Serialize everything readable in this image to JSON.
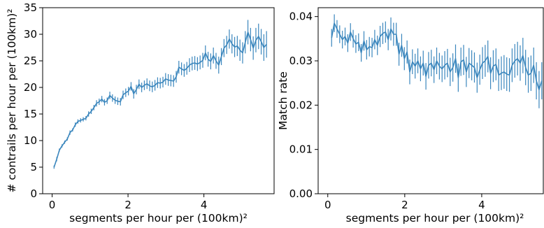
{
  "chart_data": [
    {
      "type": "line",
      "xlabel": "segments per hour per (100km)²",
      "ylabel": "# contrails per hour per (100km)²",
      "xlim": [
        -0.25,
        5.85
      ],
      "ylim": [
        0,
        35
      ],
      "xticks": [
        0,
        2,
        4
      ],
      "xtick_labels": [
        "0",
        "2",
        "4"
      ],
      "yticks": [
        0,
        5,
        10,
        15,
        20,
        25,
        30,
        35
      ],
      "ytick_labels": [
        "0",
        "5",
        "10",
        "15",
        "20",
        "25",
        "30",
        "35"
      ],
      "grid": false,
      "series": [
        {
          "color": "#3a86bd",
          "error_bars": true,
          "x": [
            0.05,
            0.12,
            0.19,
            0.26,
            0.33,
            0.4,
            0.47,
            0.54,
            0.61,
            0.68,
            0.75,
            0.82,
            0.89,
            0.96,
            1.03,
            1.1,
            1.17,
            1.24,
            1.31,
            1.38,
            1.45,
            1.52,
            1.59,
            1.66,
            1.73,
            1.8,
            1.87,
            1.94,
            2.01,
            2.08,
            2.15,
            2.22,
            2.29,
            2.36,
            2.43,
            2.5,
            2.57,
            2.64,
            2.71,
            2.78,
            2.85,
            2.92,
            2.99,
            3.06,
            3.13,
            3.2,
            3.27,
            3.34,
            3.41,
            3.48,
            3.55,
            3.62,
            3.69,
            3.76,
            3.83,
            3.9,
            3.97,
            4.04,
            4.11,
            4.18,
            4.25,
            4.32,
            4.39,
            4.46,
            4.53,
            4.6,
            4.67,
            4.74,
            4.81,
            4.88,
            4.95,
            5.02,
            5.09,
            5.16,
            5.23,
            5.3,
            5.37,
            5.44,
            5.51,
            5.58,
            5.65
          ],
          "y": [
            5.0,
            6.5,
            8.2,
            9.0,
            9.7,
            10.3,
            11.5,
            12.0,
            13.0,
            13.6,
            13.8,
            14.0,
            14.2,
            15.0,
            15.5,
            16.2,
            17.0,
            17.3,
            17.8,
            17.2,
            17.5,
            18.5,
            18.0,
            17.6,
            17.4,
            17.3,
            18.6,
            19.0,
            19.3,
            20.2,
            18.8,
            19.6,
            20.6,
            20.0,
            20.4,
            20.7,
            20.3,
            20.1,
            20.4,
            20.9,
            20.8,
            21.0,
            21.6,
            21.4,
            21.3,
            21.2,
            22.0,
            23.8,
            23.5,
            23.2,
            23.6,
            24.2,
            24.5,
            24.6,
            24.4,
            24.7,
            25.1,
            26.5,
            25.3,
            24.9,
            26.0,
            25.0,
            24.2,
            25.8,
            27.4,
            28.0,
            29.1,
            28.2,
            27.6,
            27.8,
            27.0,
            26.5,
            28.5,
            30.4,
            29.0,
            27.4,
            28.9,
            29.6,
            28.6,
            27.5,
            28.1
          ],
          "err": [
            0.3,
            0.4,
            0.3,
            0.3,
            0.3,
            0.3,
            0.4,
            0.3,
            0.4,
            0.4,
            0.4,
            0.4,
            0.4,
            0.5,
            0.5,
            0.5,
            0.6,
            0.6,
            0.6,
            0.6,
            0.6,
            0.7,
            0.7,
            0.7,
            0.7,
            0.7,
            0.8,
            0.8,
            0.8,
            0.8,
            0.9,
            0.9,
            0.9,
            0.9,
            0.9,
            1.0,
            1.0,
            1.0,
            1.0,
            1.0,
            1.0,
            1.0,
            1.1,
            1.1,
            1.1,
            1.1,
            1.1,
            1.2,
            1.2,
            1.2,
            1.2,
            1.3,
            1.3,
            1.3,
            1.3,
            1.3,
            1.4,
            1.4,
            1.4,
            1.5,
            1.5,
            1.5,
            1.6,
            1.6,
            1.7,
            1.7,
            1.8,
            1.8,
            1.9,
            1.9,
            2.0,
            2.0,
            2.1,
            2.3,
            2.2,
            2.2,
            2.3,
            2.4,
            2.4,
            2.5,
            2.5
          ]
        }
      ]
    },
    {
      "type": "line",
      "xlabel": "segments per hour per (100km)²",
      "ylabel": "Match rate",
      "xlim": [
        -0.25,
        5.6
      ],
      "ylim": [
        0,
        0.042
      ],
      "xticks": [
        0,
        2,
        4
      ],
      "xtick_labels": [
        "0",
        "2",
        "4"
      ],
      "yticks": [
        0,
        0.01,
        0.02,
        0.03,
        0.04
      ],
      "ytick_labels": [
        "0.00",
        "0.01",
        "0.02",
        "0.03",
        "0.04"
      ],
      "grid": false,
      "series": [
        {
          "color": "#3a86bd",
          "error_bars": true,
          "x": [
            0.1,
            0.17,
            0.24,
            0.31,
            0.38,
            0.45,
            0.52,
            0.59,
            0.66,
            0.73,
            0.8,
            0.87,
            0.94,
            1.01,
            1.08,
            1.15,
            1.22,
            1.29,
            1.36,
            1.43,
            1.5,
            1.57,
            1.64,
            1.71,
            1.78,
            1.85,
            1.92,
            1.99,
            2.06,
            2.13,
            2.2,
            2.27,
            2.34,
            2.41,
            2.48,
            2.55,
            2.62,
            2.69,
            2.76,
            2.83,
            2.9,
            2.97,
            3.04,
            3.11,
            3.18,
            3.25,
            3.32,
            3.39,
            3.46,
            3.53,
            3.6,
            3.67,
            3.74,
            3.81,
            3.88,
            3.95,
            4.02,
            4.09,
            4.16,
            4.23,
            4.3,
            4.37,
            4.44,
            4.51,
            4.58,
            4.65,
            4.72,
            4.79,
            4.86,
            4.93,
            5.0,
            5.07,
            5.14,
            5.21,
            5.28,
            5.35,
            5.42,
            5.49,
            5.56
          ],
          "y": [
            0.0352,
            0.0385,
            0.0372,
            0.036,
            0.0348,
            0.0355,
            0.034,
            0.0365,
            0.035,
            0.0338,
            0.0342,
            0.0318,
            0.0345,
            0.0325,
            0.0332,
            0.033,
            0.0348,
            0.0335,
            0.0355,
            0.0362,
            0.0365,
            0.0348,
            0.0372,
            0.036,
            0.036,
            0.0315,
            0.0335,
            0.0305,
            0.032,
            0.0275,
            0.0298,
            0.0288,
            0.03,
            0.0282,
            0.0295,
            0.0265,
            0.029,
            0.0295,
            0.028,
            0.03,
            0.0288,
            0.0282,
            0.029,
            0.0295,
            0.0275,
            0.0285,
            0.0305,
            0.0262,
            0.0298,
            0.0302,
            0.0275,
            0.0295,
            0.029,
            0.0285,
            0.0262,
            0.028,
            0.0295,
            0.03,
            0.031,
            0.0272,
            0.0288,
            0.0292,
            0.0268,
            0.0272,
            0.0275,
            0.027,
            0.0268,
            0.029,
            0.03,
            0.0305,
            0.0295,
            0.0312,
            0.0285,
            0.0268,
            0.0272,
            0.029,
            0.0255,
            0.0235,
            0.0255
          ],
          "err": [
            0.002,
            0.002,
            0.002,
            0.002,
            0.002,
            0.002,
            0.002,
            0.002,
            0.002,
            0.002,
            0.002,
            0.002,
            0.0022,
            0.0022,
            0.0022,
            0.0022,
            0.0022,
            0.0022,
            0.0024,
            0.0024,
            0.0024,
            0.0024,
            0.0026,
            0.0026,
            0.0026,
            0.0026,
            0.0026,
            0.0026,
            0.0026,
            0.0028,
            0.0028,
            0.0028,
            0.0028,
            0.0028,
            0.0028,
            0.003,
            0.003,
            0.003,
            0.003,
            0.003,
            0.003,
            0.003,
            0.0032,
            0.0032,
            0.0032,
            0.0032,
            0.0032,
            0.0032,
            0.0032,
            0.0034,
            0.0034,
            0.0034,
            0.0034,
            0.0034,
            0.0034,
            0.0034,
            0.0036,
            0.0036,
            0.0036,
            0.0036,
            0.0036,
            0.0036,
            0.0036,
            0.0038,
            0.0038,
            0.0038,
            0.0038,
            0.0038,
            0.0038,
            0.0038,
            0.004,
            0.004,
            0.004,
            0.004,
            0.004,
            0.004,
            0.0042,
            0.0042,
            0.0042
          ]
        }
      ]
    }
  ]
}
